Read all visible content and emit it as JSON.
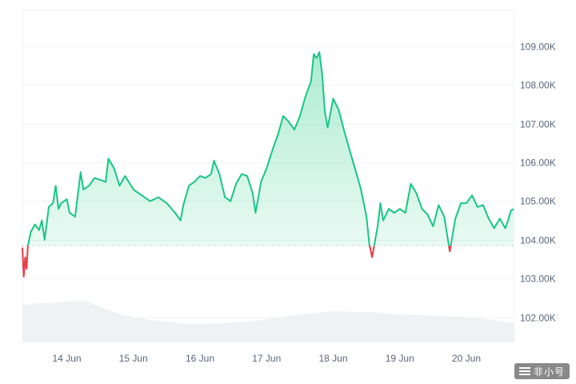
{
  "chart_data": {
    "type": "area",
    "title": "",
    "xlabel": "",
    "ylabel": "",
    "y_axis_position": "right",
    "ylim": [
      101350,
      109950
    ],
    "y_ticks": [
      {
        "value": 102000,
        "label": "102.00K"
      },
      {
        "value": 103000,
        "label": "103.00K"
      },
      {
        "value": 104000,
        "label": "104.00K"
      },
      {
        "value": 105000,
        "label": "105.00K"
      },
      {
        "value": 106000,
        "label": "106.00K"
      },
      {
        "value": 107000,
        "label": "107.00K"
      },
      {
        "value": 108000,
        "label": "108.00K"
      },
      {
        "value": 109000,
        "label": "109.00K"
      }
    ],
    "x_ticks": [
      {
        "date": "2025-06-14",
        "label": "14 Jun"
      },
      {
        "date": "2025-06-15",
        "label": "15 Jun"
      },
      {
        "date": "2025-06-16",
        "label": "16 Jun"
      },
      {
        "date": "2025-06-17",
        "label": "17 Jun"
      },
      {
        "date": "2025-06-18",
        "label": "18 Jun"
      },
      {
        "date": "2025-06-19",
        "label": "19 Jun"
      },
      {
        "date": "2025-06-20",
        "label": "20 Jun"
      }
    ],
    "xlim": [
      "2025-06-13 08:00",
      "2025-06-20 17:00"
    ],
    "baseline": 103850,
    "colors": {
      "above": "#16c784",
      "below": "#ea3943",
      "volume": "#eff2f5",
      "grid": "#eff2f5",
      "baseline": "#a6b0c3"
    },
    "series": [
      {
        "values": [
          [
            "2025-06-13 08:00",
            103800
          ],
          [
            "2025-06-13 08:30",
            103050
          ],
          [
            "2025-06-13 09:00",
            103550
          ],
          [
            "2025-06-13 09:30",
            103250
          ],
          [
            "2025-06-13 10:00",
            103850
          ],
          [
            "2025-06-13 11:00",
            104200
          ],
          [
            "2025-06-13 12:30",
            104400
          ],
          [
            "2025-06-13 14:00",
            104250
          ],
          [
            "2025-06-13 15:00",
            104500
          ],
          [
            "2025-06-13 16:00",
            104000
          ],
          [
            "2025-06-13 17:30",
            104850
          ],
          [
            "2025-06-13 19:00",
            104950
          ],
          [
            "2025-06-13 20:00",
            105400
          ],
          [
            "2025-06-13 21:00",
            104800
          ],
          [
            "2025-06-13 22:00",
            104950
          ],
          [
            "2025-06-14 00:00",
            105050
          ],
          [
            "2025-06-14 01:00",
            104700
          ],
          [
            "2025-06-14 03:00",
            104600
          ],
          [
            "2025-06-14 05:00",
            105750
          ],
          [
            "2025-06-14 06:00",
            105300
          ],
          [
            "2025-06-14 08:00",
            105400
          ],
          [
            "2025-06-14 10:00",
            105600
          ],
          [
            "2025-06-14 12:00",
            105550
          ],
          [
            "2025-06-14 14:00",
            105500
          ],
          [
            "2025-06-14 15:00",
            106100
          ],
          [
            "2025-06-14 17:00",
            105850
          ],
          [
            "2025-06-14 19:00",
            105400
          ],
          [
            "2025-06-14 21:00",
            105650
          ],
          [
            "2025-06-15 00:00",
            105300
          ],
          [
            "2025-06-15 03:00",
            105150
          ],
          [
            "2025-06-15 06:00",
            105000
          ],
          [
            "2025-06-15 09:00",
            105100
          ],
          [
            "2025-06-15 12:00",
            104950
          ],
          [
            "2025-06-15 15:00",
            104700
          ],
          [
            "2025-06-15 17:00",
            104500
          ],
          [
            "2025-06-15 18:00",
            104900
          ],
          [
            "2025-06-15 20:00",
            105400
          ],
          [
            "2025-06-15 22:00",
            105500
          ],
          [
            "2025-06-16 00:00",
            105650
          ],
          [
            "2025-06-16 02:00",
            105600
          ],
          [
            "2025-06-16 04:00",
            105700
          ],
          [
            "2025-06-16 05:00",
            106050
          ],
          [
            "2025-06-16 07:00",
            105700
          ],
          [
            "2025-06-16 09:00",
            105100
          ],
          [
            "2025-06-16 11:00",
            105000
          ],
          [
            "2025-06-16 13:00",
            105450
          ],
          [
            "2025-06-16 15:00",
            105700
          ],
          [
            "2025-06-16 17:00",
            105650
          ],
          [
            "2025-06-16 19:00",
            105200
          ],
          [
            "2025-06-16 20:00",
            104700
          ],
          [
            "2025-06-16 22:00",
            105500
          ],
          [
            "2025-06-17 00:00",
            105850
          ],
          [
            "2025-06-17 02:00",
            106300
          ],
          [
            "2025-06-17 04:00",
            106700
          ],
          [
            "2025-06-17 06:00",
            107200
          ],
          [
            "2025-06-17 08:00",
            107050
          ],
          [
            "2025-06-17 10:00",
            106850
          ],
          [
            "2025-06-17 12:00",
            107200
          ],
          [
            "2025-06-17 14:00",
            107700
          ],
          [
            "2025-06-17 16:00",
            108100
          ],
          [
            "2025-06-17 17:00",
            108800
          ],
          [
            "2025-06-17 18:00",
            108700
          ],
          [
            "2025-06-17 19:00",
            108850
          ],
          [
            "2025-06-17 20:00",
            108300
          ],
          [
            "2025-06-17 21:00",
            107300
          ],
          [
            "2025-06-17 22:00",
            106900
          ],
          [
            "2025-06-18 00:00",
            107650
          ],
          [
            "2025-06-18 02:00",
            107350
          ],
          [
            "2025-06-18 04:00",
            106800
          ],
          [
            "2025-06-18 06:00",
            106300
          ],
          [
            "2025-06-18 08:00",
            105800
          ],
          [
            "2025-06-18 10:00",
            105300
          ],
          [
            "2025-06-18 12:00",
            104600
          ],
          [
            "2025-06-18 13:00",
            103900
          ],
          [
            "2025-06-18 14:00",
            103550
          ],
          [
            "2025-06-18 15:00",
            103950
          ],
          [
            "2025-06-18 16:00",
            104350
          ],
          [
            "2025-06-18 17:00",
            104950
          ],
          [
            "2025-06-18 18:00",
            104500
          ],
          [
            "2025-06-18 20:00",
            104800
          ],
          [
            "2025-06-18 22:00",
            104700
          ],
          [
            "2025-06-19 00:00",
            104800
          ],
          [
            "2025-06-19 02:00",
            104700
          ],
          [
            "2025-06-19 04:00",
            105450
          ],
          [
            "2025-06-19 06:00",
            105200
          ],
          [
            "2025-06-19 08:00",
            104800
          ],
          [
            "2025-06-19 10:00",
            104650
          ],
          [
            "2025-06-19 12:00",
            104350
          ],
          [
            "2025-06-19 14:00",
            104900
          ],
          [
            "2025-06-19 16:00",
            104600
          ],
          [
            "2025-06-19 18:00",
            103700
          ],
          [
            "2025-06-19 20:00",
            104550
          ],
          [
            "2025-06-19 22:00",
            104950
          ],
          [
            "2025-06-20 00:00",
            104950
          ],
          [
            "2025-06-20 02:00",
            105150
          ],
          [
            "2025-06-20 04:00",
            104850
          ],
          [
            "2025-06-20 06:00",
            104900
          ],
          [
            "2025-06-20 08:00",
            104550
          ],
          [
            "2025-06-20 10:00",
            104300
          ],
          [
            "2025-06-20 12:00",
            104550
          ],
          [
            "2025-06-20 14:00",
            104300
          ],
          [
            "2025-06-20 15:00",
            104500
          ],
          [
            "2025-06-20 16:00",
            104750
          ],
          [
            "2025-06-20 17:00",
            104800
          ]
        ]
      },
      {
        "type": "volume",
        "values": [
          [
            "2025-06-13 08:00",
            0.8
          ],
          [
            "2025-06-13 12:00",
            0.84
          ],
          [
            "2025-06-13 18:00",
            0.85
          ],
          [
            "2025-06-14 00:00",
            0.88
          ],
          [
            "2025-06-14 06:00",
            0.9
          ],
          [
            "2025-06-14 09:00",
            0.84
          ],
          [
            "2025-06-14 14:00",
            0.72
          ],
          [
            "2025-06-14 20:00",
            0.6
          ],
          [
            "2025-06-15 04:00",
            0.5
          ],
          [
            "2025-06-15 12:00",
            0.45
          ],
          [
            "2025-06-15 20:00",
            0.4
          ],
          [
            "2025-06-16 06:00",
            0.41
          ],
          [
            "2025-06-16 16:00",
            0.44
          ],
          [
            "2025-06-17 00:00",
            0.5
          ],
          [
            "2025-06-17 12:00",
            0.6
          ],
          [
            "2025-06-18 00:00",
            0.67
          ],
          [
            "2025-06-18 12:00",
            0.66
          ],
          [
            "2025-06-19 00:00",
            0.6
          ],
          [
            "2025-06-19 12:00",
            0.58
          ],
          [
            "2025-06-20 00:00",
            0.55
          ],
          [
            "2025-06-20 10:00",
            0.48
          ],
          [
            "2025-06-20 17:00",
            0.42
          ]
        ]
      }
    ]
  },
  "watermark": {
    "text": "非小号"
  }
}
